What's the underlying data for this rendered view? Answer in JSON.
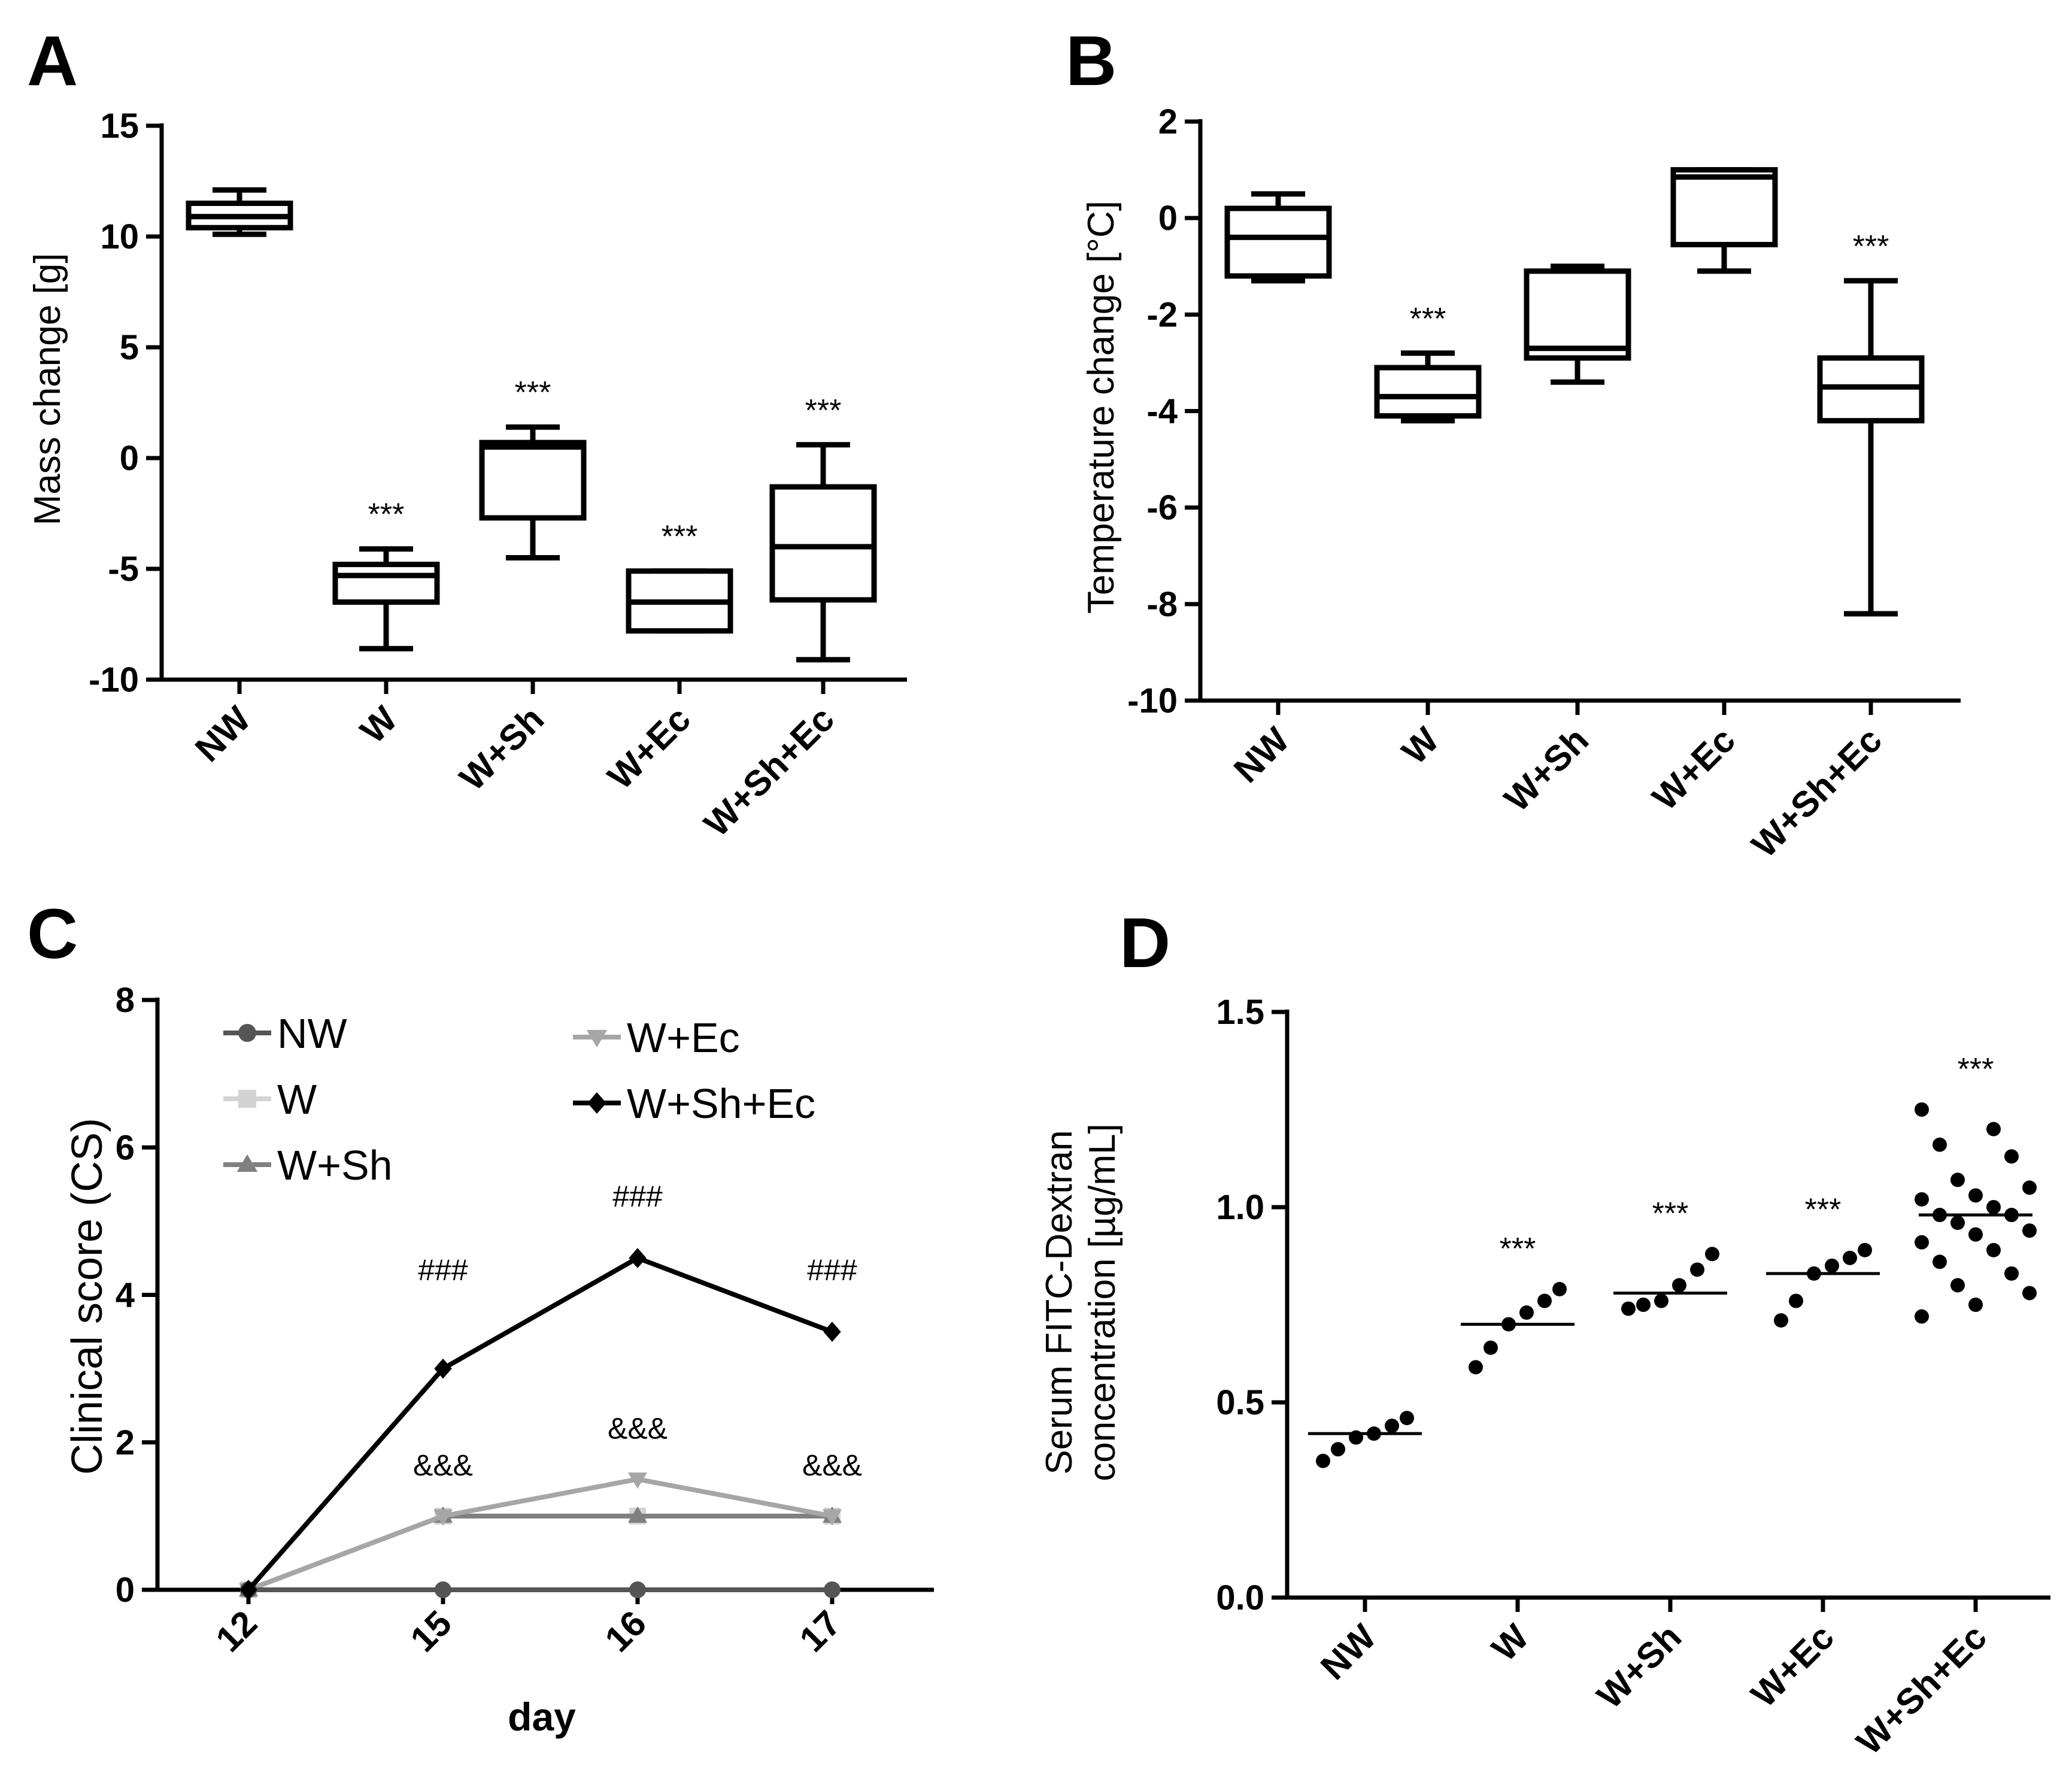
{
  "chart_data": [
    {
      "panel": "A",
      "type": "boxplot",
      "ylabel": "Mass change [g]",
      "ylim": [
        -10,
        15
      ],
      "yticks": [
        -10,
        -5,
        0,
        5,
        10,
        15
      ],
      "categories": [
        "NW",
        "W",
        "W+Sh",
        "W+Ec",
        "W+Sh+Ec"
      ],
      "boxes": [
        {
          "min": 10.1,
          "q1": 10.4,
          "median": 10.9,
          "q3": 11.5,
          "max": 12.1
        },
        {
          "min": -8.6,
          "q1": -6.5,
          "median": -5.3,
          "q3": -4.8,
          "max": -4.1
        },
        {
          "min": -4.5,
          "q1": -2.7,
          "median": 0.5,
          "q3": 0.7,
          "max": 1.4
        },
        {
          "min": -7.8,
          "q1": -7.8,
          "median": -6.5,
          "q3": -5.1,
          "max": -5.1
        },
        {
          "min": -9.1,
          "q1": -6.4,
          "median": -4.0,
          "q3": -1.3,
          "max": 0.6
        }
      ],
      "significance": [
        "",
        "***",
        "***",
        "***",
        "***"
      ]
    },
    {
      "panel": "B",
      "type": "boxplot",
      "ylabel": "Temperature change [°C]",
      "ylim": [
        -10,
        2
      ],
      "yticks": [
        -10,
        -8,
        -6,
        -4,
        -2,
        0,
        2
      ],
      "categories": [
        "NW",
        "W",
        "W+Sh",
        "W+Ec",
        "W+Sh+Ec"
      ],
      "boxes": [
        {
          "min": -1.3,
          "q1": -1.2,
          "median": -0.4,
          "q3": 0.2,
          "max": 0.5
        },
        {
          "min": -4.2,
          "q1": -4.1,
          "median": -3.7,
          "q3": -3.1,
          "max": -2.8
        },
        {
          "min": -3.4,
          "q1": -2.9,
          "median": -2.7,
          "q3": -1.1,
          "max": -1.0
        },
        {
          "min": -1.1,
          "q1": -0.55,
          "median": 0.85,
          "q3": 1.0,
          "max": 1.0
        },
        {
          "min": -8.2,
          "q1": -4.2,
          "median": -3.5,
          "q3": -2.9,
          "max": -1.3
        }
      ],
      "significance": [
        "",
        "***",
        "",
        "",
        "***"
      ]
    },
    {
      "panel": "C",
      "type": "line",
      "xlabel": "day",
      "ylabel": "Clinical score (CS)",
      "ylim": [
        0,
        8
      ],
      "yticks": [
        0,
        2,
        4,
        6,
        8
      ],
      "categories": [
        "12",
        "15",
        "16",
        "17"
      ],
      "series": [
        {
          "name": "NW",
          "color": "#555555",
          "marker": "circle",
          "values": [
            0,
            0,
            0,
            0
          ]
        },
        {
          "name": "W",
          "color": "#d3d3d3",
          "marker": "square",
          "values": [
            0,
            1,
            1,
            1
          ]
        },
        {
          "name": "W+Sh",
          "color": "#808080",
          "marker": "triangle-up",
          "values": [
            0,
            1,
            1,
            1
          ]
        },
        {
          "name": "W+Ec",
          "color": "#a6a6a6",
          "marker": "triangle-down",
          "values": [
            0,
            1,
            1.5,
            1
          ]
        },
        {
          "name": "W+Sh+Ec",
          "color": "#000000",
          "marker": "diamond",
          "values": [
            0,
            3,
            4.5,
            3.5
          ]
        }
      ],
      "annotations": [
        {
          "text": "###",
          "x": "15",
          "y": 4.2
        },
        {
          "text": "###",
          "x": "16",
          "y": 5.2
        },
        {
          "text": "###",
          "x": "17",
          "y": 4.2
        },
        {
          "text": "&&&",
          "x": "15",
          "y": 1.55
        },
        {
          "text": "&&&",
          "x": "16",
          "y": 2.05
        },
        {
          "text": "&&&",
          "x": "17",
          "y": 1.55
        }
      ]
    },
    {
      "panel": "D",
      "type": "scatter",
      "ylabel_line1": "Serum FITC-Dextran",
      "ylabel_line2": "concentration [µg/mL]",
      "ylim": [
        0,
        1.5
      ],
      "yticks": [
        "0.0",
        "0.5",
        "1.0",
        "1.5"
      ],
      "categories": [
        "NW",
        "W",
        "W+Sh",
        "W+Ec",
        "W+Sh+Ec"
      ],
      "groups": [
        {
          "mean": 0.42,
          "points": [
            0.35,
            0.38,
            0.41,
            0.42,
            0.44,
            0.46
          ]
        },
        {
          "mean": 0.7,
          "points": [
            0.59,
            0.64,
            0.7,
            0.73,
            0.76,
            0.79
          ]
        },
        {
          "mean": 0.78,
          "points": [
            0.74,
            0.75,
            0.76,
            0.8,
            0.84,
            0.88
          ]
        },
        {
          "mean": 0.83,
          "points": [
            0.71,
            0.76,
            0.83,
            0.85,
            0.87,
            0.89
          ]
        },
        {
          "mean": 0.98,
          "points": [
            1.25,
            1.2,
            1.16,
            1.13,
            1.07,
            1.05,
            1.03,
            1.02,
            1.0,
            0.98,
            0.98,
            0.96,
            0.94,
            0.93,
            0.91,
            0.89,
            0.86,
            0.83,
            0.8,
            0.78,
            0.75,
            0.72
          ]
        }
      ],
      "significance": [
        "",
        "***",
        "***",
        "***",
        "***"
      ]
    }
  ]
}
